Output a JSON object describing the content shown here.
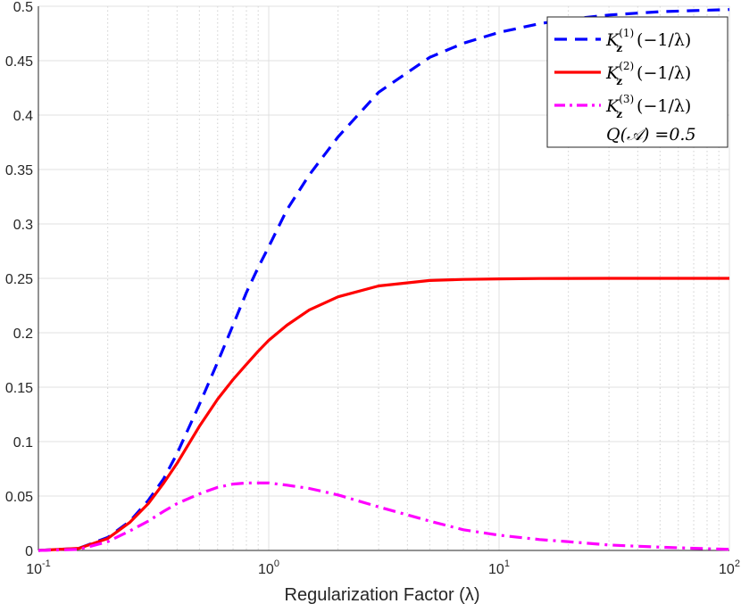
{
  "chart_data": {
    "type": "line",
    "title": "",
    "xlabel": "Regularization Factor (λ)",
    "ylabel": "",
    "xscale": "log",
    "xlim": [
      0.1,
      100
    ],
    "ylim": [
      0,
      0.5
    ],
    "grid": true,
    "legend_position": "top-right",
    "x_ticks": [
      {
        "base": "10",
        "exp": "-1"
      },
      {
        "base": "10",
        "exp": "0"
      },
      {
        "base": "10",
        "exp": "1"
      },
      {
        "base": "10",
        "exp": "2"
      }
    ],
    "y_ticks": [
      "0",
      "0.05",
      "0.1",
      "0.15",
      "0.2",
      "0.25",
      "0.3",
      "0.35",
      "0.4",
      "0.45",
      "0.5"
    ],
    "series": [
      {
        "name": "K_z^(1)(−1/λ)",
        "legend": {
          "main": "K",
          "sub": "z",
          "sup": "(1)",
          "arg": "(−1/λ)"
        },
        "color": "#0000ff",
        "style": "dashed",
        "x": [
          0.1,
          0.15,
          0.2,
          0.25,
          0.3,
          0.35,
          0.4,
          0.5,
          0.6,
          0.7,
          0.8,
          0.9,
          1.0,
          1.2,
          1.5,
          2,
          3,
          5,
          7,
          10,
          15,
          20,
          30,
          50,
          70,
          100
        ],
        "y": [
          0.0,
          0.002,
          0.012,
          0.027,
          0.046,
          0.066,
          0.089,
          0.134,
          0.173,
          0.207,
          0.237,
          0.26,
          0.279,
          0.313,
          0.345,
          0.38,
          0.421,
          0.453,
          0.466,
          0.476,
          0.484,
          0.488,
          0.492,
          0.495,
          0.496,
          0.497
        ]
      },
      {
        "name": "K_z^(2)(−1/λ)",
        "legend": {
          "main": "K",
          "sub": "z",
          "sup": "(2)",
          "arg": "(−1/λ)"
        },
        "color": "#ff0000",
        "style": "solid",
        "x": [
          0.1,
          0.15,
          0.2,
          0.25,
          0.3,
          0.35,
          0.4,
          0.5,
          0.6,
          0.7,
          0.8,
          0.9,
          1.0,
          1.2,
          1.5,
          2,
          3,
          5,
          7,
          10,
          15,
          20,
          30,
          50,
          70,
          100
        ],
        "y": [
          0.0,
          0.002,
          0.011,
          0.026,
          0.043,
          0.062,
          0.08,
          0.114,
          0.139,
          0.157,
          0.171,
          0.183,
          0.193,
          0.207,
          0.221,
          0.233,
          0.243,
          0.248,
          0.249,
          0.2495,
          0.2498,
          0.2499,
          0.25,
          0.25,
          0.25,
          0.25
        ]
      },
      {
        "name": "K_z^(3)(−1/λ)",
        "legend": {
          "main": "K",
          "sub": "z",
          "sup": "(3)",
          "arg": "(−1/λ)"
        },
        "color": "#ff00ff",
        "style": "dashdot",
        "x": [
          0.1,
          0.15,
          0.2,
          0.25,
          0.3,
          0.35,
          0.4,
          0.5,
          0.6,
          0.7,
          0.8,
          0.9,
          1.0,
          1.2,
          1.5,
          2,
          3,
          5,
          7,
          10,
          15,
          20,
          30,
          50,
          70,
          100
        ],
        "y": [
          0.0,
          0.001,
          0.008,
          0.018,
          0.027,
          0.036,
          0.043,
          0.052,
          0.058,
          0.061,
          0.062,
          0.062,
          0.062,
          0.06,
          0.057,
          0.051,
          0.04,
          0.027,
          0.019,
          0.014,
          0.01,
          0.008,
          0.005,
          0.003,
          0.002,
          0.001
        ]
      }
    ],
    "legend_extra": "Q(𝒜) =0.5"
  }
}
